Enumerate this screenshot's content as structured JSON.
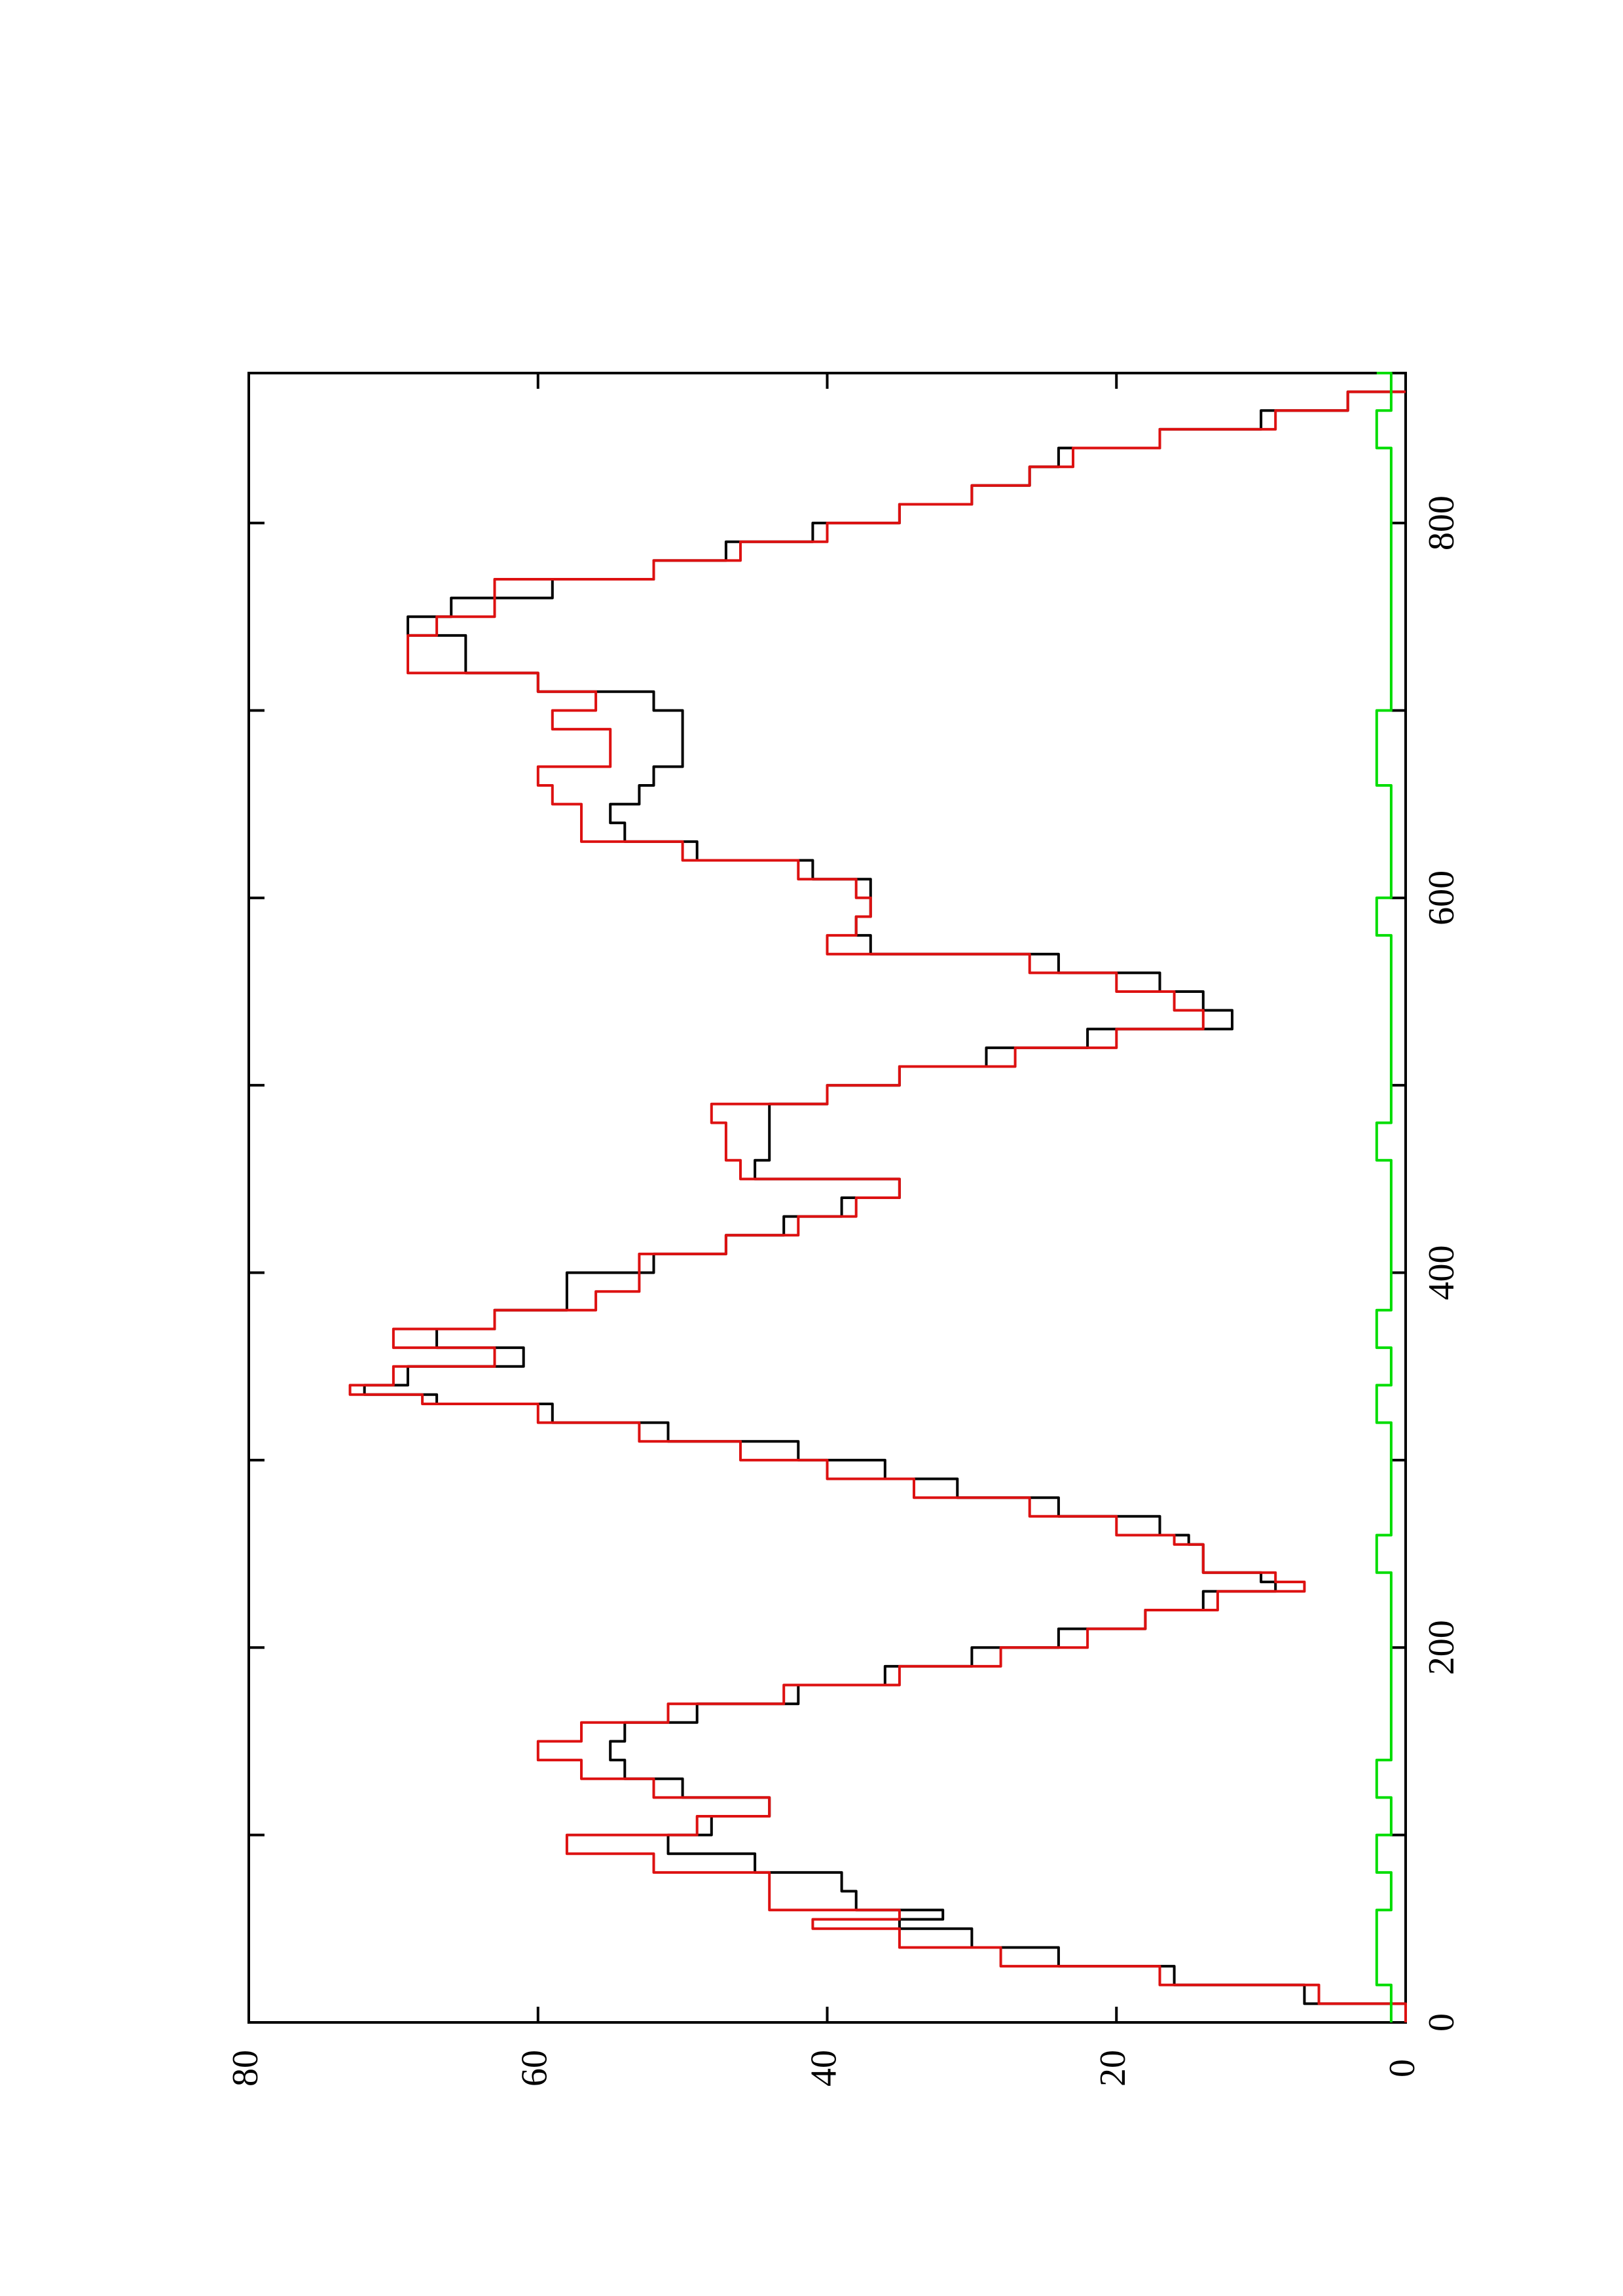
{
  "chart_data": {
    "type": "line",
    "orientation": "rotated-90-ccw",
    "title": "",
    "xlabel": "",
    "ylabel": "",
    "xlim": [
      0,
      880
    ],
    "ylim": [
      0,
      80
    ],
    "x_ticks": [
      0,
      200,
      400,
      600,
      800
    ],
    "x_tick_labels": [
      "0",
      "200",
      "400",
      "600",
      "800"
    ],
    "x_minor_ticks": [
      100,
      300,
      500,
      700
    ],
    "y_ticks": [
      0,
      20,
      40,
      60,
      80
    ],
    "y_tick_labels": [
      "0",
      "20",
      "40",
      "60",
      "80"
    ],
    "grid": false,
    "series": [
      {
        "color": "#000000",
        "x": [
          0,
          10,
          20,
          30,
          40,
          50,
          55,
          60,
          70,
          80,
          90,
          100,
          110,
          120,
          130,
          140,
          150,
          160,
          170,
          180,
          190,
          200,
          210,
          220,
          230,
          235,
          240,
          250,
          255,
          260,
          270,
          280,
          290,
          300,
          310,
          320,
          330,
          335,
          340,
          350,
          360,
          370,
          380,
          390,
          400,
          410,
          420,
          430,
          440,
          450,
          460,
          470,
          480,
          490,
          500,
          510,
          520,
          530,
          540,
          550,
          560,
          570,
          580,
          590,
          600,
          610,
          620,
          630,
          640,
          650,
          660,
          670,
          680,
          690,
          700,
          710,
          720,
          730,
          740,
          750,
          760,
          770,
          780,
          790,
          800,
          810,
          820,
          830,
          840,
          850,
          860,
          870
        ],
        "values": [
          0,
          7,
          16,
          24,
          30,
          35,
          32,
          38,
          39,
          45,
          51,
          48,
          44,
          50,
          54,
          55,
          54,
          49,
          42,
          36,
          30,
          24,
          18,
          14,
          9,
          10,
          14,
          14,
          15,
          17,
          24,
          31,
          36,
          42,
          51,
          59,
          67,
          72,
          69,
          61,
          67,
          63,
          58,
          58,
          52,
          47,
          43,
          39,
          35,
          45,
          44,
          44,
          44,
          40,
          35,
          29,
          22,
          12,
          14,
          17,
          24,
          37,
          38,
          37,
          37,
          41,
          49,
          54,
          55,
          53,
          52,
          50,
          50,
          50,
          52,
          60,
          65,
          65,
          69,
          66,
          59,
          52,
          47,
          41,
          35,
          30,
          26,
          24,
          17,
          10,
          4,
          0
        ]
      },
      {
        "color": "#dd1111",
        "x": [
          0,
          10,
          20,
          30,
          40,
          50,
          55,
          60,
          70,
          80,
          90,
          100,
          110,
          120,
          130,
          140,
          150,
          160,
          170,
          180,
          190,
          200,
          210,
          220,
          230,
          235,
          240,
          250,
          255,
          260,
          270,
          280,
          290,
          300,
          310,
          320,
          330,
          335,
          340,
          350,
          360,
          370,
          380,
          390,
          400,
          410,
          420,
          430,
          440,
          450,
          460,
          470,
          480,
          490,
          500,
          510,
          520,
          530,
          540,
          550,
          560,
          570,
          580,
          590,
          600,
          610,
          620,
          630,
          640,
          650,
          660,
          670,
          680,
          690,
          700,
          710,
          720,
          730,
          740,
          750,
          760,
          770,
          780,
          790,
          800,
          810,
          820,
          830,
          840,
          850,
          860,
          870
        ],
        "values": [
          0,
          6,
          17,
          28,
          35,
          41,
          35,
          44,
          44,
          52,
          58,
          49,
          44,
          52,
          57,
          60,
          57,
          51,
          43,
          35,
          28,
          22,
          18,
          13,
          7,
          9,
          14,
          14,
          16,
          20,
          26,
          34,
          40,
          46,
          53,
          60,
          68,
          73,
          70,
          63,
          70,
          63,
          56,
          53,
          53,
          47,
          42,
          38,
          35,
          46,
          47,
          47,
          48,
          40,
          35,
          27,
          20,
          14,
          16,
          20,
          26,
          40,
          38,
          37,
          38,
          42,
          50,
          57,
          57,
          59,
          60,
          55,
          55,
          59,
          56,
          60,
          69,
          69,
          67,
          63,
          63,
          52,
          46,
          40,
          35,
          30,
          26,
          23,
          17,
          9,
          4,
          0
        ]
      },
      {
        "color": "#00dd00",
        "x": [
          0,
          20,
          40,
          60,
          80,
          100,
          120,
          140,
          160,
          180,
          200,
          220,
          240,
          260,
          280,
          300,
          320,
          340,
          360,
          380,
          400,
          420,
          440,
          460,
          480,
          500,
          520,
          540,
          560,
          580,
          600,
          620,
          640,
          660,
          680,
          700,
          720,
          740,
          760,
          780,
          800,
          820,
          840,
          860,
          880
        ],
        "values": [
          1,
          2,
          2,
          1,
          2,
          1,
          2,
          1,
          1,
          1,
          1,
          1,
          2,
          1,
          1,
          1,
          2,
          1,
          2,
          1,
          1,
          1,
          1,
          2,
          1,
          1,
          1,
          1,
          1,
          2,
          1,
          1,
          1,
          2,
          2,
          1,
          1,
          1,
          1,
          1,
          1,
          1,
          2,
          1,
          2
        ]
      }
    ]
  }
}
